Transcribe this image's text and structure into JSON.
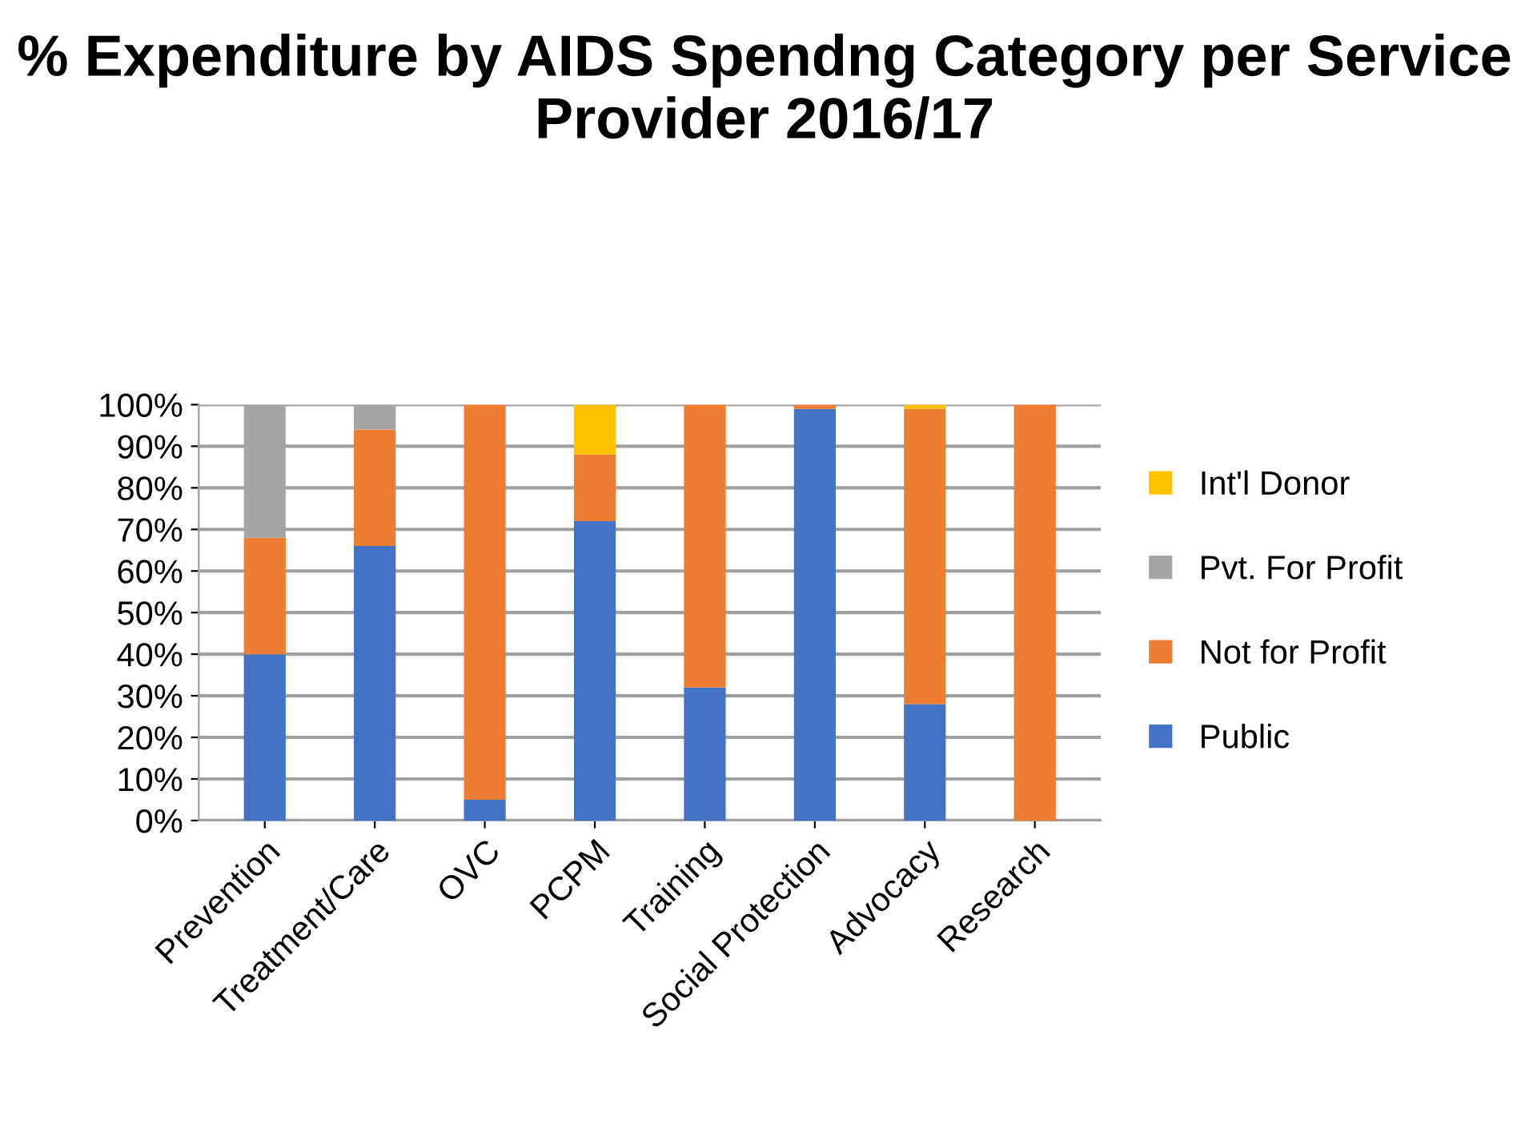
{
  "chart_data": {
    "type": "bar",
    "title": "% Expenditure by AIDS Spendng Category per Service Provider 2016/17",
    "categories": [
      "Prevention",
      "Treatment/Care",
      "OVC",
      "PCPM",
      "Training",
      "Social Protection",
      "Advocacy",
      "Research"
    ],
    "stacked": true,
    "series": [
      {
        "name": "Public",
        "color": "#4472c4",
        "values": [
          40,
          66,
          5,
          72,
          32,
          99,
          28,
          0
        ]
      },
      {
        "name": "Not for Profit",
        "color": "#ed7d31",
        "values": [
          28,
          28,
          95,
          16,
          68,
          1,
          71,
          100
        ]
      },
      {
        "name": "Pvt. For Profit",
        "color": "#a5a5a5",
        "values": [
          32,
          6,
          0,
          0,
          0,
          0,
          0,
          0
        ]
      },
      {
        "name": "Int'l Donor",
        "color": "#ffc000",
        "values": [
          0,
          0,
          0,
          12,
          0,
          0,
          1,
          0
        ]
      }
    ],
    "ylim": [
      0,
      100
    ],
    "yticks": [
      {
        "value": 0,
        "label": "0%"
      },
      {
        "value": 10,
        "label": "10%"
      },
      {
        "value": 20,
        "label": "20%"
      },
      {
        "value": 30,
        "label": "30%"
      },
      {
        "value": 40,
        "label": "40%"
      },
      {
        "value": 50,
        "label": "50%"
      },
      {
        "value": 60,
        "label": "60%"
      },
      {
        "value": 70,
        "label": "70%"
      },
      {
        "value": 80,
        "label": "80%"
      },
      {
        "value": 90,
        "label": "90%"
      },
      {
        "value": 100,
        "label": "100%"
      }
    ],
    "grid": "y",
    "legend": "right"
  }
}
